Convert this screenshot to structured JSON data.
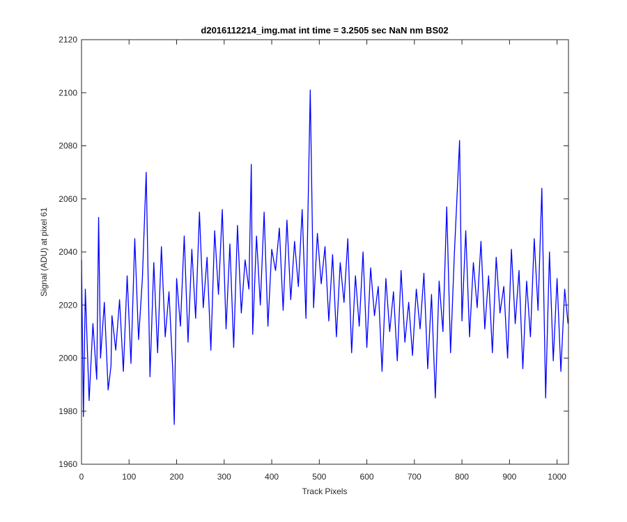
{
  "chart_data": {
    "type": "line",
    "title": "d2016112214_img.mat int time = 3.2505 sec  NaN nm BS02",
    "x_label": "Track Pixels",
    "y_label": "Signal (ADU) at pixel 61",
    "x": [
      0,
      4,
      8,
      16,
      24,
      32,
      36,
      40,
      48,
      56,
      62,
      64,
      72,
      80,
      88,
      96,
      104,
      112,
      120,
      128,
      136,
      144,
      152,
      160,
      168,
      176,
      184,
      192,
      195,
      200,
      208,
      216,
      224,
      232,
      240,
      248,
      256,
      264,
      272,
      280,
      288,
      296,
      304,
      312,
      320,
      328,
      336,
      344,
      352,
      357,
      360,
      368,
      376,
      384,
      392,
      400,
      408,
      416,
      424,
      432,
      440,
      448,
      456,
      464,
      472,
      481,
      488,
      496,
      504,
      512,
      520,
      528,
      536,
      544,
      552,
      560,
      568,
      576,
      584,
      592,
      600,
      608,
      616,
      624,
      632,
      640,
      648,
      656,
      664,
      672,
      680,
      688,
      696,
      704,
      712,
      720,
      728,
      736,
      744,
      752,
      760,
      768,
      776,
      784,
      795,
      800,
      808,
      816,
      824,
      832,
      840,
      848,
      856,
      864,
      872,
      880,
      888,
      896,
      904,
      912,
      920,
      928,
      936,
      944,
      952,
      960,
      968,
      976,
      984,
      992,
      1000,
      1008,
      1016,
      1023
    ],
    "series": [
      {
        "name": "Signal",
        "color": "#0000ff",
        "values": [
          2037,
          1978,
          2026,
          1984,
          2013,
          1992,
          2053,
          2000,
          2021,
          1988,
          1997,
          2016,
          2003,
          2022,
          1995,
          2031,
          1998,
          2045,
          2007,
          2030,
          2070,
          1993,
          2036,
          2002,
          2042,
          2008,
          2025,
          1995,
          1975,
          2030,
          2012,
          2046,
          2006,
          2041,
          2015,
          2055,
          2019,
          2038,
          2003,
          2048,
          2024,
          2056,
          2011,
          2043,
          2004,
          2050,
          2017,
          2037,
          2026,
          2073,
          2009,
          2046,
          2020,
          2055,
          2012,
          2041,
          2033,
          2049,
          2018,
          2052,
          2022,
          2044,
          2027,
          2056,
          2015,
          2101,
          2019,
          2047,
          2028,
          2042,
          2014,
          2039,
          2008,
          2036,
          2021,
          2045,
          2002,
          2031,
          2012,
          2040,
          2004,
          2034,
          2016,
          2027,
          1995,
          2030,
          2010,
          2025,
          1999,
          2033,
          2006,
          2021,
          2001,
          2026,
          2011,
          2032,
          1996,
          2024,
          1985,
          2029,
          2010,
          2057,
          2002,
          2039,
          2082,
          2014,
          2048,
          2008,
          2036,
          2019,
          2044,
          2011,
          2031,
          2002,
          2038,
          2017,
          2027,
          2000,
          2041,
          2013,
          2033,
          1996,
          2029,
          2008,
          2045,
          2018,
          2064,
          1985,
          2040,
          1999,
          2030,
          1995,
          2026,
          2013
        ]
      }
    ],
    "xlim": [
      0,
      1024
    ],
    "ylim": [
      1960,
      2120
    ],
    "xticks": [
      0,
      100,
      200,
      300,
      400,
      500,
      600,
      700,
      800,
      900,
      1000
    ],
    "yticks": [
      1960,
      1980,
      2000,
      2020,
      2040,
      2060,
      2080,
      2100,
      2120
    ]
  }
}
